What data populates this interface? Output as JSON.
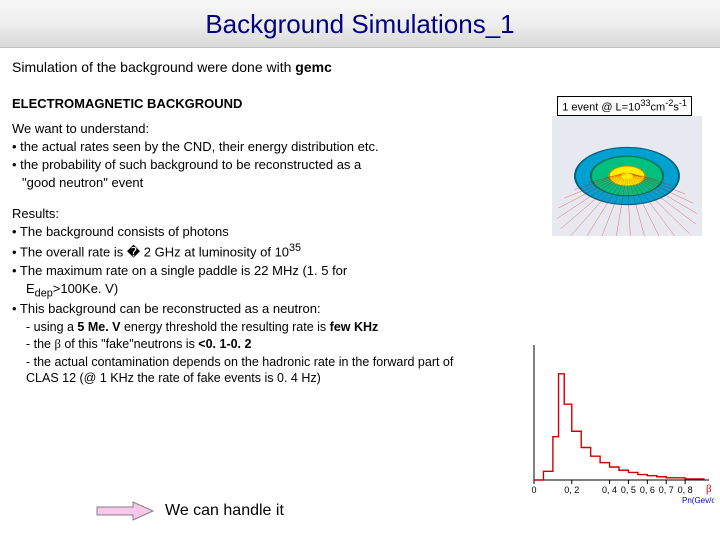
{
  "title": "Background Simulations_1",
  "intro_prefix": "Simulation of the background were done with ",
  "intro_bold": "gemc",
  "caption_prefix": "1 event @ L=10",
  "caption_exp1": "33",
  "caption_mid": "cm",
  "caption_exp2": "-2",
  "caption_s": "s",
  "caption_exp3": "-1",
  "section": "ELECTROMAGNETIC BACKGROUND",
  "want": "We want to understand:",
  "want1": "• the actual rates seen by the CND, their energy distribution etc.",
  "want2": "• the probability of such background to be reconstructed as a",
  "want2b": "  \"good neutron\" event",
  "results_label": "Results:",
  "r1": "• The background consists of photons",
  "r2_a": "• The overall rate is � 2 GHz at luminosity of 10",
  "r2_exp": "35",
  "r3a": "• The maximum rate on a single paddle is 22 MHz (1. 5 for",
  "r3b_a": "E",
  "r3b_sub": "dep",
  "r3b_b": ">100Ke. V)",
  "r4": "• This background can be reconstructed as a neutron:",
  "s1_a": "- using a ",
  "s1_b": "5 Me. V",
  "s1_c": " energy threshold the resulting rate is ",
  "s1_d": "few KHz",
  "s2_a": "- the ",
  "s2_beta": "β",
  "s2_b": " of this \"fake\"neutrons is ",
  "s2_c": "<0. 1-0. 2",
  "s3": "- the actual contamination depends on the hadronic rate in the forward part of CLAS 12 (@ 1 KHz the rate of fake events is 0. 4 Hz)",
  "handle": "We can handle it",
  "arrow_fill": "#f8c8e8",
  "arrow_stroke": "#808080",
  "title_color": "#000080",
  "chart": {
    "type": "histogram-step",
    "line_color": "#cc0000",
    "line_width": 1.4,
    "background": "#ffffff",
    "axis_color": "#000000",
    "xlim": [
      0,
      0.9
    ],
    "ylim": [
      0,
      120
    ],
    "xlabel": "Pn(Gev/c)",
    "xlabel_color": "#0000cc",
    "xlabel_fontsize": 8,
    "xticks": [
      0,
      0.2,
      0.4,
      0.5,
      0.6,
      0.7,
      0.8
    ],
    "xtick_labels": [
      "0",
      "0, 2",
      "0, 4",
      "0, 5",
      "0, 6",
      "0, 7",
      "0, 8"
    ],
    "beta_label": "β",
    "beta_label_color": "#cc0000",
    "points": [
      [
        0.0,
        0
      ],
      [
        0.05,
        8
      ],
      [
        0.1,
        40
      ],
      [
        0.13,
        98
      ],
      [
        0.16,
        70
      ],
      [
        0.2,
        45
      ],
      [
        0.25,
        30
      ],
      [
        0.3,
        22
      ],
      [
        0.35,
        16
      ],
      [
        0.4,
        12
      ],
      [
        0.45,
        9
      ],
      [
        0.5,
        7
      ],
      [
        0.55,
        5
      ],
      [
        0.6,
        4
      ],
      [
        0.65,
        3
      ],
      [
        0.7,
        2
      ],
      [
        0.75,
        2
      ],
      [
        0.8,
        1
      ],
      [
        0.85,
        1
      ],
      [
        0.9,
        0
      ]
    ]
  },
  "detector": {
    "outer_color": "#00a0d0",
    "mid_color": "#00c080",
    "inner_color": "#ffee00",
    "beam_color": "#dd0000",
    "bg": "#e8e8f0"
  }
}
